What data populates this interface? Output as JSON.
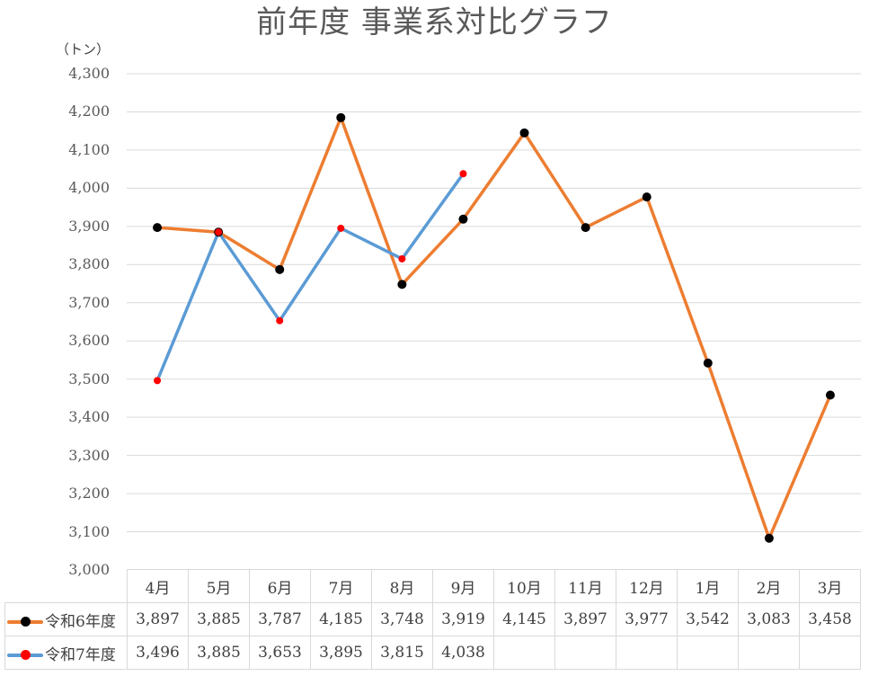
{
  "title": "前年度 事業系対比グラフ",
  "unit_label": "（トン）",
  "colors": {
    "series_r6_line": "#ED7D31",
    "series_r6_marker": "#000000",
    "series_r7_line": "#5B9BD5",
    "series_r7_marker": "#FF0000",
    "grid": "#D9D9D9",
    "text": "#595959"
  },
  "y_axis": {
    "ticks": [
      "4,300",
      "4,200",
      "4,100",
      "4,000",
      "3,900",
      "3,800",
      "3,700",
      "3,600",
      "3,500",
      "3,400",
      "3,300",
      "3,200",
      "3,100",
      "3,000"
    ]
  },
  "table": {
    "months": [
      "4月",
      "5月",
      "6月",
      "7月",
      "8月",
      "9月",
      "10月",
      "11月",
      "12月",
      "1月",
      "2月",
      "3月"
    ],
    "rows": [
      {
        "label": "令和6年度",
        "values": [
          "3,897",
          "3,885",
          "3,787",
          "4,185",
          "3,748",
          "3,919",
          "4,145",
          "3,897",
          "3,977",
          "3,542",
          "3,083",
          "3,458"
        ]
      },
      {
        "label": "令和7年度",
        "values": [
          "3,496",
          "3,885",
          "3,653",
          "3,895",
          "3,815",
          "4,038",
          "",
          "",
          "",
          "",
          "",
          ""
        ]
      }
    ]
  },
  "chart_data": {
    "type": "line",
    "title": "前年度 事業系対比グラフ",
    "xlabel": "",
    "ylabel": "（トン）",
    "categories": [
      "4月",
      "5月",
      "6月",
      "7月",
      "8月",
      "9月",
      "10月",
      "11月",
      "12月",
      "1月",
      "2月",
      "3月"
    ],
    "series": [
      {
        "name": "令和6年度",
        "color": "#ED7D31",
        "marker_color": "#000000",
        "values": [
          3897,
          3885,
          3787,
          4185,
          3748,
          3919,
          4145,
          3897,
          3977,
          3542,
          3083,
          3458
        ]
      },
      {
        "name": "令和7年度",
        "color": "#5B9BD5",
        "marker_color": "#FF0000",
        "values": [
          3496,
          3885,
          3653,
          3895,
          3815,
          4038,
          null,
          null,
          null,
          null,
          null,
          null
        ]
      }
    ],
    "ylim": [
      3000,
      4300
    ],
    "ytick_step": 100,
    "grid": true,
    "legend_position": "data-table"
  }
}
